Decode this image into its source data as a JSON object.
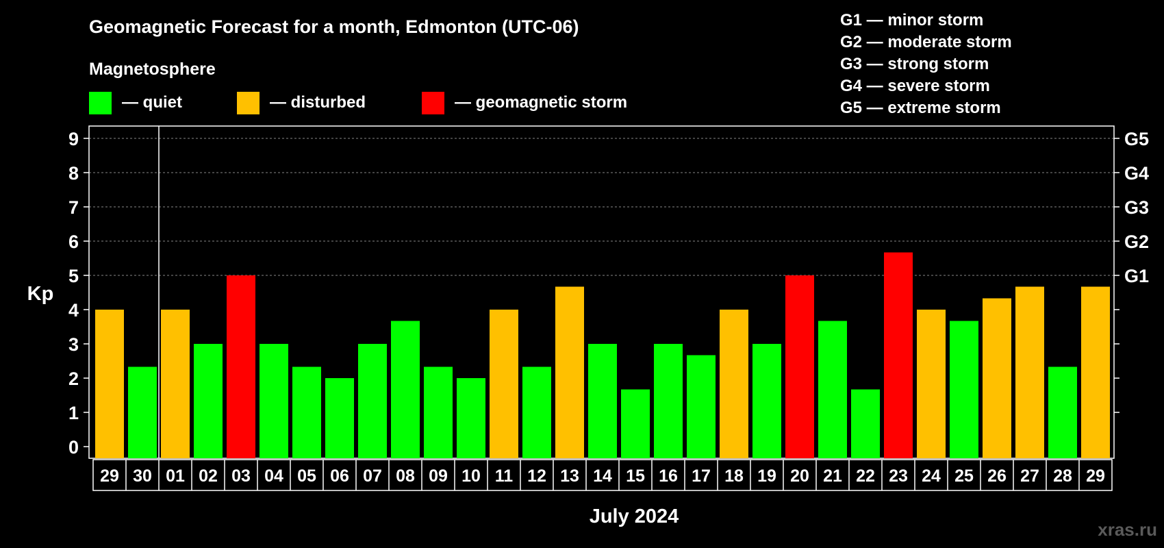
{
  "colors": {
    "background": "#000000",
    "quiet": "#00ff00",
    "disturbed": "#ffc000",
    "storm": "#ff0000",
    "grid": "#888888",
    "text": "#ffffff"
  },
  "title": "Geomagnetic Forecast for a month, Edmonton (UTC-06)",
  "legend": {
    "heading": "Magnetosphere",
    "items": [
      {
        "label": "— quiet",
        "level": "quiet"
      },
      {
        "label": "— disturbed",
        "level": "disturbed"
      },
      {
        "label": "— geomagnetic storm",
        "level": "storm"
      }
    ]
  },
  "storm_scale": [
    "G1 — minor storm",
    "G2 — moderate storm",
    "G3 — strong storm",
    "G4 — severe storm",
    "G5 — extreme storm"
  ],
  "watermark": "xras.ru",
  "chart_data": {
    "type": "bar",
    "title": "Geomagnetic Forecast for a month, Edmonton (UTC-06)",
    "xlabel": "July 2024",
    "ylabel": "Kp",
    "ylim": [
      0,
      9
    ],
    "yticks": [
      0,
      1,
      2,
      3,
      4,
      5,
      6,
      7,
      8,
      9
    ],
    "right_axis_labels": [
      {
        "kp": 5,
        "label": "G1"
      },
      {
        "kp": 6,
        "label": "G2"
      },
      {
        "kp": 7,
        "label": "G3"
      },
      {
        "kp": 8,
        "label": "G4"
      },
      {
        "kp": 9,
        "label": "G5"
      }
    ],
    "grid": true,
    "month_separator_after_index": 1,
    "categories": [
      "29",
      "30",
      "01",
      "02",
      "03",
      "04",
      "05",
      "06",
      "07",
      "08",
      "09",
      "10",
      "11",
      "12",
      "13",
      "14",
      "15",
      "16",
      "17",
      "18",
      "19",
      "20",
      "21",
      "22",
      "23",
      "24",
      "25",
      "26",
      "27",
      "28",
      "29"
    ],
    "values": [
      4.0,
      2.33,
      4.0,
      3.0,
      5.0,
      3.0,
      2.33,
      2.0,
      3.0,
      3.67,
      2.33,
      2.0,
      4.0,
      2.33,
      4.67,
      3.0,
      1.67,
      3.0,
      2.67,
      4.0,
      3.0,
      5.0,
      3.67,
      1.67,
      5.67,
      4.0,
      3.67,
      4.33,
      4.67,
      2.33,
      4.67
    ],
    "levels": [
      "disturbed",
      "quiet",
      "disturbed",
      "quiet",
      "storm",
      "quiet",
      "quiet",
      "quiet",
      "quiet",
      "quiet",
      "quiet",
      "quiet",
      "disturbed",
      "quiet",
      "disturbed",
      "quiet",
      "quiet",
      "quiet",
      "quiet",
      "disturbed",
      "quiet",
      "storm",
      "quiet",
      "quiet",
      "storm",
      "disturbed",
      "quiet",
      "disturbed",
      "disturbed",
      "quiet",
      "disturbed"
    ]
  }
}
